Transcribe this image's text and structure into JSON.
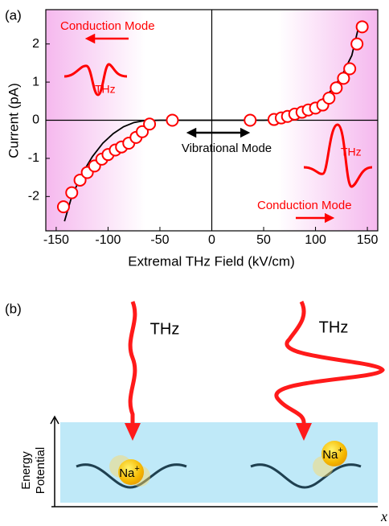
{
  "panel_labels": [
    "(a)",
    "(b)"
  ],
  "chart_data": {
    "type": "scatter",
    "x_label": "Extremal THz Field (kV/cm)",
    "y_label": "Current (pA)",
    "xlim": [
      -160,
      160
    ],
    "xticks": [
      -150,
      -100,
      -50,
      0,
      50,
      100,
      150
    ],
    "ylim": [
      -2.9,
      2.9
    ],
    "yticks": [
      -2,
      -1,
      0,
      1,
      2
    ],
    "zero_lines": true,
    "series": [
      {
        "color": "#ff0000",
        "marker": "circle",
        "x": [
          -143,
          -135,
          -127,
          -120,
          -113,
          -106,
          -100,
          -93,
          -87,
          -80,
          -73,
          -67,
          -60,
          -38,
          37,
          60,
          67,
          73,
          80,
          87,
          93,
          100,
          107,
          113,
          120,
          127,
          133,
          140,
          145
        ],
        "values": [
          -2.27,
          -1.9,
          -1.57,
          -1.37,
          -1.2,
          -1.02,
          -0.9,
          -0.78,
          -0.7,
          -0.6,
          -0.45,
          -0.3,
          -0.1,
          0,
          0,
          0.02,
          0.06,
          0.1,
          0.16,
          0.21,
          0.27,
          0.32,
          0.4,
          0.58,
          0.85,
          1.1,
          1.35,
          2.0,
          2.45
        ]
      },
      {
        "color": "#000000",
        "marker": "line",
        "x": [
          -142,
          -135,
          -125,
          -115,
          -105,
          -95,
          -85,
          -75,
          -65,
          -50,
          50,
          65,
          75,
          85,
          95,
          105,
          115,
          125,
          135,
          142
        ],
        "values": [
          -2.65,
          -2.0,
          -1.4,
          -0.95,
          -0.6,
          -0.35,
          -0.17,
          -0.06,
          -0.01,
          0,
          0,
          0.01,
          0.06,
          0.15,
          0.3,
          0.5,
          0.78,
          1.15,
          1.7,
          2.5
        ]
      }
    ],
    "annotations": [
      {
        "text": "Conduction Mode",
        "color": "#ff0000"
      },
      {
        "text": "THz",
        "color": "#ff0000"
      },
      {
        "text": "Vibrational Mode",
        "color": "#000000"
      },
      {
        "text": "THz",
        "color": "#ff0000"
      },
      {
        "text": "Conduction Mode",
        "color": "#ff0000"
      }
    ]
  },
  "diagram": {
    "wave_labels": [
      "THz",
      "THz"
    ],
    "ion": {
      "symbol": "Na",
      "charge": "+"
    },
    "y_axis_label": [
      "Energy",
      "Potential"
    ],
    "x_axis_label": "x"
  }
}
